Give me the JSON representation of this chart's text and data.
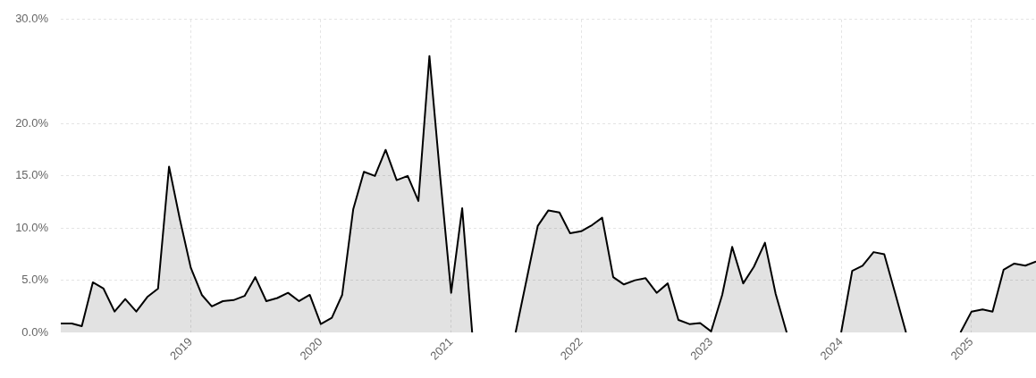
{
  "chart_data": {
    "type": "area",
    "x": [
      "2018-01",
      "2018-02",
      "2018-03",
      "2018-04",
      "2018-05",
      "2018-06",
      "2018-07",
      "2018-08",
      "2018-09",
      "2018-10",
      "2018-11",
      "2018-12",
      "2019-01",
      "2019-02",
      "2019-03",
      "2019-04",
      "2019-05",
      "2019-06",
      "2019-07",
      "2019-08",
      "2019-09",
      "2019-10",
      "2019-11",
      "2019-12",
      "2020-01",
      "2020-02",
      "2020-03",
      "2020-04",
      "2020-05",
      "2020-06",
      "2020-07",
      "2020-08",
      "2020-09",
      "2020-10",
      "2020-11",
      "2020-12",
      "2021-01",
      "2021-02",
      "2021-03",
      "2021-04",
      "2021-05",
      "2021-06",
      "2021-07",
      "2021-08",
      "2021-09",
      "2021-10",
      "2021-11",
      "2021-12",
      "2022-01",
      "2022-02",
      "2022-03",
      "2022-04",
      "2022-05",
      "2022-06",
      "2022-07",
      "2022-08",
      "2022-09",
      "2022-10",
      "2022-11",
      "2022-12",
      "2023-01",
      "2023-02",
      "2023-03",
      "2023-04",
      "2023-05",
      "2023-06",
      "2023-07",
      "2023-08",
      "2023-09",
      "2023-10",
      "2023-11",
      "2023-12",
      "2024-01",
      "2024-02",
      "2024-03",
      "2024-04",
      "2024-05",
      "2024-06",
      "2024-07",
      "2024-08",
      "2024-09",
      "2024-10",
      "2024-11",
      "2024-12",
      "2025-01",
      "2025-02",
      "2025-03",
      "2025-04",
      "2025-05",
      "2025-06",
      "2025-07"
    ],
    "series": [
      {
        "color": "#000000",
        "values": [
          0.85,
          0.85,
          0.6,
          4.8,
          4.2,
          2.0,
          3.2,
          2.0,
          3.4,
          4.2,
          15.9,
          10.9,
          6.2,
          3.6,
          2.5,
          3.0,
          3.1,
          3.5,
          5.3,
          3.0,
          3.3,
          3.8,
          3.0,
          3.6,
          0.8,
          1.4,
          3.6,
          11.8,
          15.4,
          15.0,
          17.5,
          14.6,
          15.0,
          12.6,
          26.5,
          15.0,
          3.8,
          11.9,
          0,
          null,
          null,
          null,
          0,
          5.1,
          10.2,
          11.7,
          11.5,
          9.5,
          9.7,
          10.3,
          11.0,
          5.3,
          4.6,
          5.0,
          5.2,
          3.8,
          4.7,
          1.2,
          0.8,
          0.9,
          0.1,
          3.6,
          8.2,
          4.7,
          6.3,
          8.6,
          3.7,
          0,
          null,
          null,
          null,
          null,
          0,
          5.9,
          6.4,
          7.7,
          7.5,
          3.7,
          0,
          null,
          null,
          null,
          null,
          0,
          2.0,
          2.2,
          2.0,
          6.0,
          6.6,
          6.4,
          6.8
        ]
      }
    ],
    "xlim": [
      "2018-01",
      "2025-07"
    ],
    "xticks": [
      {
        "value": "2019-01",
        "label": "2019"
      },
      {
        "value": "2020-01",
        "label": "2020"
      },
      {
        "value": "2021-01",
        "label": "2021"
      },
      {
        "value": "2022-01",
        "label": "2022"
      },
      {
        "value": "2023-01",
        "label": "2023"
      },
      {
        "value": "2024-01",
        "label": "2024"
      },
      {
        "value": "2025-01",
        "label": "2025"
      }
    ],
    "ylim": [
      0,
      30
    ],
    "yticks": [
      {
        "value": 0,
        "label": "0.0%"
      },
      {
        "value": 5,
        "label": "5.0%"
      },
      {
        "value": 10,
        "label": "10.0%"
      },
      {
        "value": 15,
        "label": "15.0%"
      },
      {
        "value": 20,
        "label": "20.0%"
      },
      {
        "value": 30,
        "label": "30.0%"
      }
    ],
    "grid": true,
    "marker": "none",
    "line_style": "solid"
  }
}
